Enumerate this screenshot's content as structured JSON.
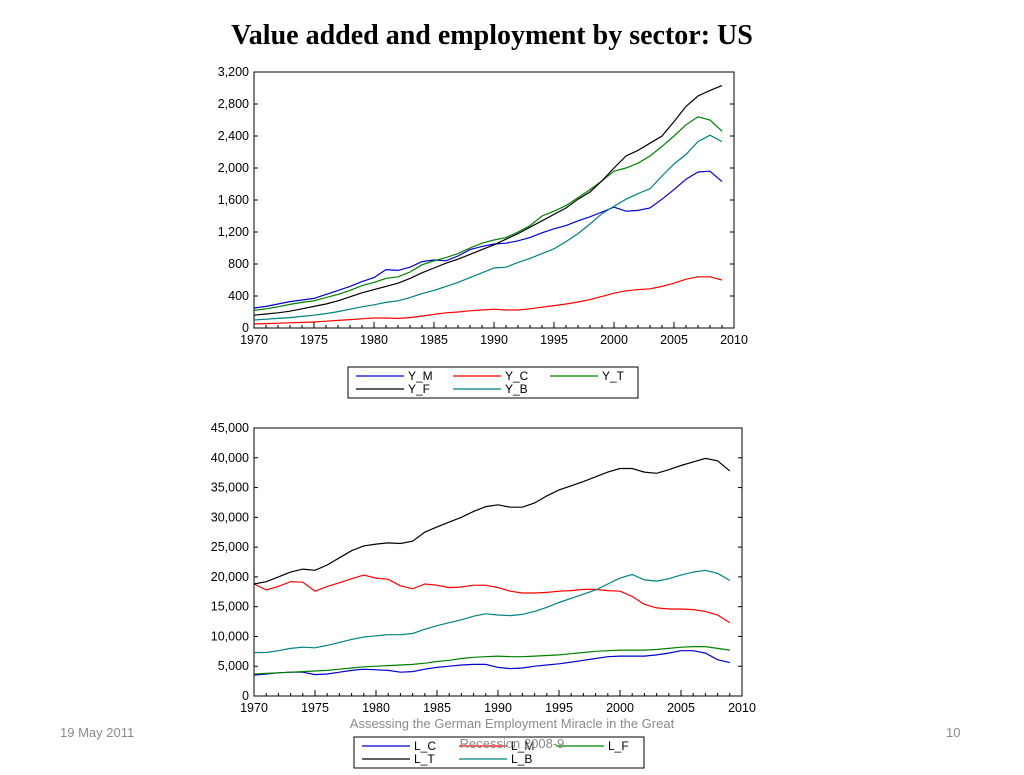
{
  "slide": {
    "title": "Value added and employment by sector: US",
    "footer_date": "19 May 2011",
    "footer_text": "Assessing the German Employment Miracle in the Great Recession 2008-9",
    "page_number": "10"
  },
  "chart_data": [
    {
      "type": "line",
      "x": [
        1970,
        1971,
        1972,
        1973,
        1974,
        1975,
        1976,
        1977,
        1978,
        1979,
        1980,
        1981,
        1982,
        1983,
        1984,
        1985,
        1986,
        1987,
        1988,
        1989,
        1990,
        1991,
        1992,
        1993,
        1994,
        1995,
        1996,
        1997,
        1998,
        1999,
        2000,
        2001,
        2002,
        2003,
        2004,
        2005,
        2006,
        2007,
        2008,
        2009
      ],
      "xlim": [
        1970,
        2010
      ],
      "ylim": [
        0,
        3200
      ],
      "xticks": [
        1970,
        1975,
        1980,
        1985,
        1990,
        1995,
        2000,
        2005,
        2010
      ],
      "yticks": [
        "0",
        "400",
        "800",
        "1,200",
        "1,600",
        "2,000",
        "2,400",
        "2,800",
        "3,200"
      ],
      "legend_position": "bottom",
      "series": [
        {
          "name": "Y_M",
          "color": "#0000cc",
          "values": [
            250,
            270,
            300,
            330,
            350,
            370,
            420,
            470,
            520,
            580,
            630,
            730,
            720,
            760,
            830,
            850,
            840,
            900,
            980,
            1020,
            1050,
            1060,
            1090,
            1130,
            1190,
            1240,
            1280,
            1340,
            1390,
            1450,
            1510,
            1460,
            1470,
            1500,
            1610,
            1730,
            1860,
            1950,
            1960,
            1830
          ]
        },
        {
          "name": "Y_C",
          "color": "#ff0000",
          "values": [
            50,
            55,
            60,
            65,
            70,
            75,
            85,
            95,
            105,
            115,
            125,
            125,
            120,
            130,
            150,
            170,
            190,
            200,
            215,
            225,
            235,
            225,
            225,
            240,
            260,
            280,
            300,
            325,
            355,
            395,
            435,
            465,
            480,
            490,
            520,
            560,
            610,
            640,
            640,
            600
          ]
        },
        {
          "name": "Y_T",
          "color": "#008000",
          "values": [
            220,
            240,
            265,
            295,
            320,
            340,
            380,
            420,
            470,
            530,
            570,
            620,
            640,
            700,
            790,
            840,
            880,
            930,
            1000,
            1060,
            1100,
            1130,
            1200,
            1280,
            1400,
            1460,
            1530,
            1630,
            1730,
            1840,
            1960,
            2000,
            2060,
            2150,
            2270,
            2400,
            2540,
            2640,
            2600,
            2460
          ]
        },
        {
          "name": "Y_F",
          "color": "#000000",
          "values": [
            160,
            175,
            190,
            210,
            240,
            270,
            300,
            340,
            390,
            440,
            480,
            520,
            560,
            620,
            690,
            750,
            810,
            860,
            920,
            980,
            1040,
            1110,
            1180,
            1260,
            1340,
            1420,
            1500,
            1610,
            1700,
            1840,
            2000,
            2150,
            2220,
            2310,
            2400,
            2580,
            2770,
            2900,
            2970,
            3030
          ]
        },
        {
          "name": "Y_B",
          "color": "#008080",
          "values": [
            100,
            110,
            120,
            130,
            145,
            160,
            180,
            205,
            235,
            265,
            290,
            320,
            340,
            380,
            430,
            470,
            520,
            570,
            630,
            690,
            750,
            760,
            820,
            870,
            930,
            990,
            1080,
            1180,
            1300,
            1430,
            1520,
            1610,
            1680,
            1740,
            1900,
            2050,
            2170,
            2330,
            2410,
            2330
          ]
        }
      ]
    },
    {
      "type": "line",
      "x": [
        1970,
        1971,
        1972,
        1973,
        1974,
        1975,
        1976,
        1977,
        1978,
        1979,
        1980,
        1981,
        1982,
        1983,
        1984,
        1985,
        1986,
        1987,
        1988,
        1989,
        1990,
        1991,
        1992,
        1993,
        1994,
        1995,
        1996,
        1997,
        1998,
        1999,
        2000,
        2001,
        2002,
        2003,
        2004,
        2005,
        2006,
        2007,
        2008,
        2009
      ],
      "xlim": [
        1970,
        2010
      ],
      "ylim": [
        0,
        45000
      ],
      "xticks": [
        1970,
        1975,
        1980,
        1985,
        1990,
        1995,
        2000,
        2005,
        2010
      ],
      "yticks": [
        "0",
        "5,000",
        "10,000",
        "15,000",
        "20,000",
        "25,000",
        "30,000",
        "35,000",
        "40,000",
        "45,000"
      ],
      "legend_position": "bottom",
      "series": [
        {
          "name": "L_C",
          "color": "#0000cc",
          "values": [
            3500,
            3700,
            3900,
            4000,
            4000,
            3600,
            3700,
            4000,
            4300,
            4500,
            4400,
            4300,
            4000,
            4100,
            4500,
            4800,
            5000,
            5200,
            5300,
            5300,
            4800,
            4600,
            4700,
            5000,
            5200,
            5400,
            5700,
            6000,
            6300,
            6600,
            6700,
            6700,
            6700,
            6900,
            7200,
            7600,
            7600,
            7200,
            6100,
            5600
          ]
        },
        {
          "name": "L_M",
          "color": "#ff0000",
          "values": [
            18800,
            17800,
            18400,
            19200,
            19100,
            17600,
            18400,
            19000,
            19700,
            20300,
            19800,
            19600,
            18500,
            18000,
            18800,
            18600,
            18200,
            18300,
            18600,
            18600,
            18200,
            17600,
            17300,
            17300,
            17400,
            17600,
            17700,
            17900,
            17900,
            17700,
            17600,
            16700,
            15400,
            14800,
            14600,
            14600,
            14500,
            14200,
            13600,
            12300
          ]
        },
        {
          "name": "L_F",
          "color": "#008000",
          "values": [
            3700,
            3800,
            3900,
            4000,
            4100,
            4200,
            4300,
            4500,
            4700,
            4900,
            5000,
            5100,
            5200,
            5300,
            5500,
            5800,
            6000,
            6300,
            6500,
            6600,
            6700,
            6600,
            6600,
            6700,
            6800,
            6900,
            7100,
            7300,
            7500,
            7600,
            7700,
            7700,
            7700,
            7800,
            8000,
            8200,
            8300,
            8300,
            8000,
            7700
          ]
        },
        {
          "name": "L_T",
          "color": "#000000",
          "values": [
            18800,
            19200,
            20000,
            20800,
            21300,
            21100,
            22000,
            23200,
            24400,
            25200,
            25500,
            25700,
            25600,
            26000,
            27500,
            28400,
            29200,
            30000,
            31000,
            31800,
            32100,
            31700,
            31700,
            32400,
            33600,
            34600,
            35300,
            36000,
            36800,
            37600,
            38200,
            38200,
            37600,
            37400,
            38000,
            38700,
            39300,
            39900,
            39500,
            37800
          ]
        },
        {
          "name": "L_B",
          "color": "#008080",
          "values": [
            7300,
            7300,
            7600,
            8000,
            8200,
            8100,
            8500,
            9000,
            9500,
            9900,
            10100,
            10300,
            10300,
            10500,
            11200,
            11800,
            12300,
            12800,
            13400,
            13800,
            13600,
            13500,
            13700,
            14200,
            14900,
            15700,
            16400,
            17100,
            17800,
            18800,
            19800,
            20400,
            19500,
            19300,
            19700,
            20300,
            20800,
            21100,
            20600,
            19400
          ]
        }
      ]
    }
  ]
}
